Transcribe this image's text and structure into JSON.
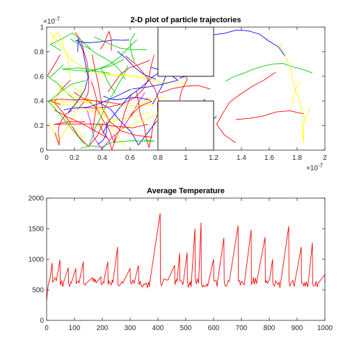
{
  "figure": {
    "background": "#ffffff"
  },
  "chart_data": [
    {
      "type": "line",
      "title": "2-D plot of particle trajectories",
      "xlabel": "",
      "ylabel": "",
      "xlim": [
        0,
        2e-07
      ],
      "ylim": [
        0,
        1e-07
      ],
      "x_ticks": [
        "0",
        "0.2",
        "0.4",
        "0.6",
        "0.8",
        "1",
        "1.2",
        "1.4",
        "1.6",
        "1.8",
        "2"
      ],
      "y_ticks": [
        "0",
        "0.2",
        "0.4",
        "0.6",
        "0.8",
        "1"
      ],
      "x_multiplier": "×10",
      "x_exponent": "-7",
      "y_multiplier": "×10",
      "y_exponent": "-7",
      "grid": false,
      "legend": "none",
      "series_colors": [
        "#0000ff",
        "#ff0000",
        "#00cc00",
        "#ffff00",
        "#ff00ff"
      ],
      "boxes": [
        {
          "x0": 8e-08,
          "x1": 1.2e-07,
          "y0": 6e-08,
          "y1": 1e-07
        },
        {
          "x0": 8e-08,
          "x1": 1.2e-07,
          "y0": 0.0,
          "y1": 4e-08
        }
      ]
    },
    {
      "type": "line",
      "title": "Average Temperature",
      "xlabel": "",
      "ylabel": "",
      "xlim": [
        0,
        1000
      ],
      "ylim": [
        0,
        2000
      ],
      "x_ticks": [
        "0",
        "100",
        "200",
        "300",
        "400",
        "500",
        "600",
        "700",
        "800",
        "900",
        "1000"
      ],
      "y_ticks": [
        "0",
        "500",
        "1000",
        "1500",
        "2000"
      ],
      "grid": false,
      "legend": "none",
      "color": "#ff0000",
      "peaks": [
        {
          "x": 20,
          "y": 940
        },
        {
          "x": 48,
          "y": 990
        },
        {
          "x": 78,
          "y": 860
        },
        {
          "x": 105,
          "y": 850
        },
        {
          "x": 132,
          "y": 960
        },
        {
          "x": 165,
          "y": 700
        },
        {
          "x": 195,
          "y": 710
        },
        {
          "x": 220,
          "y": 960
        },
        {
          "x": 255,
          "y": 1200
        },
        {
          "x": 300,
          "y": 850
        },
        {
          "x": 330,
          "y": 900
        },
        {
          "x": 408,
          "y": 1750
        },
        {
          "x": 460,
          "y": 900
        },
        {
          "x": 478,
          "y": 1100
        },
        {
          "x": 505,
          "y": 1110
        },
        {
          "x": 533,
          "y": 1500
        },
        {
          "x": 555,
          "y": 1600
        },
        {
          "x": 600,
          "y": 1000
        },
        {
          "x": 637,
          "y": 1350
        },
        {
          "x": 688,
          "y": 1550
        },
        {
          "x": 735,
          "y": 1480
        },
        {
          "x": 785,
          "y": 1360
        },
        {
          "x": 812,
          "y": 1000
        },
        {
          "x": 870,
          "y": 1540
        },
        {
          "x": 915,
          "y": 1200
        },
        {
          "x": 955,
          "y": 1270
        },
        {
          "x": 1000,
          "y": 750
        }
      ]
    }
  ]
}
